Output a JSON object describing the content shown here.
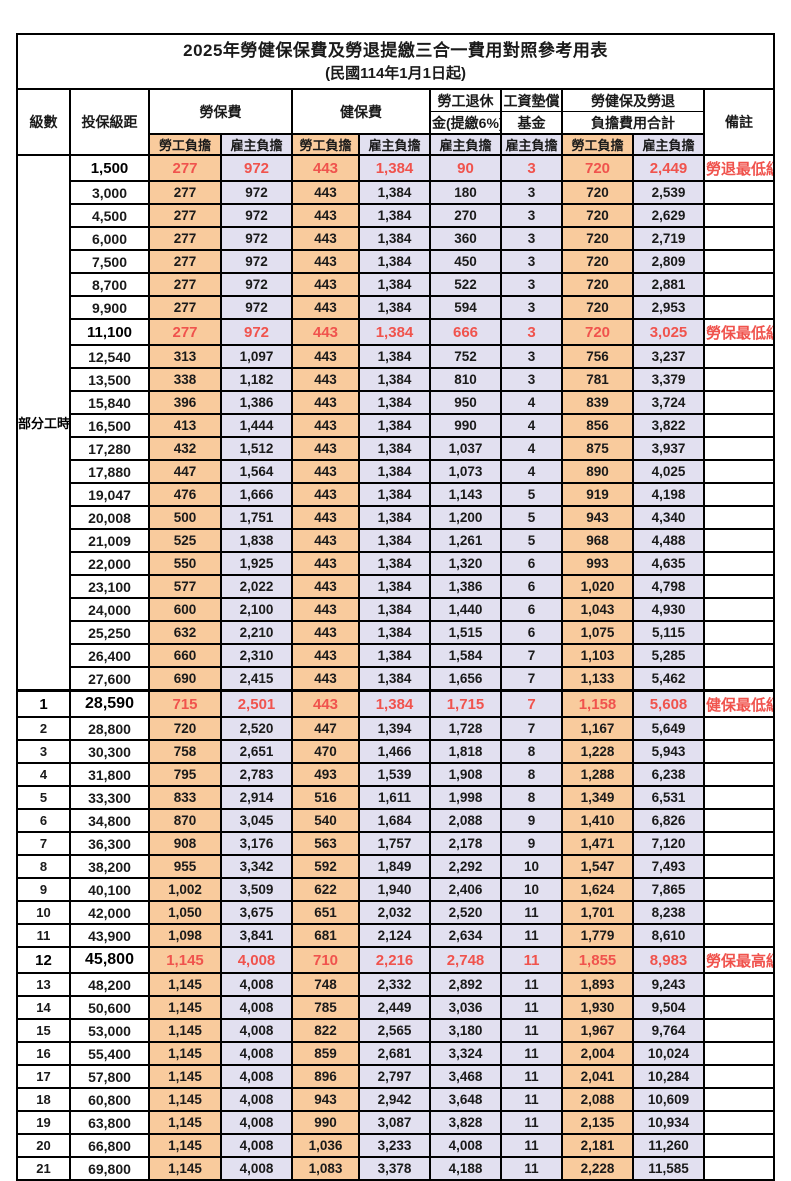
{
  "title": "2025年勞健保保費及勞退提繳三合一費用對照參考用表",
  "subtitle": "(民國114年1月1日起)",
  "header": {
    "level": "級數",
    "bracket": "投保級距",
    "labor_ins": "勞保費",
    "health_ins": "健保費",
    "pension_line1": "勞工退休",
    "pension_line2": "金(提繳6%)",
    "wage_fund_line1": "工資墊償",
    "wage_fund_line2": "基金",
    "total_line1": "勞健保及勞退",
    "total_line2": "負擔費用合計",
    "remark": "備註",
    "employee": "勞工負擔",
    "employer": "雇主負擔"
  },
  "part_time_label": "部分工時",
  "part_time_rowspan": 23,
  "colors": {
    "employee_bg": "#f9cb9d",
    "employer_bg": "#e2e0f0",
    "highlight_red": "#f0534d",
    "border": "#000000"
  },
  "rows": [
    {
      "lv": "",
      "amt": "1,500",
      "v": [
        "277",
        "972",
        "443",
        "1,384",
        "90",
        "3",
        "720",
        "2,449"
      ],
      "note": "勞退最低級距",
      "hl": true
    },
    {
      "lv": "",
      "amt": "3,000",
      "v": [
        "277",
        "972",
        "443",
        "1,384",
        "180",
        "3",
        "720",
        "2,539"
      ],
      "note": ""
    },
    {
      "lv": "",
      "amt": "4,500",
      "v": [
        "277",
        "972",
        "443",
        "1,384",
        "270",
        "3",
        "720",
        "2,629"
      ],
      "note": ""
    },
    {
      "lv": "",
      "amt": "6,000",
      "v": [
        "277",
        "972",
        "443",
        "1,384",
        "360",
        "3",
        "720",
        "2,719"
      ],
      "note": ""
    },
    {
      "lv": "",
      "amt": "7,500",
      "v": [
        "277",
        "972",
        "443",
        "1,384",
        "450",
        "3",
        "720",
        "2,809"
      ],
      "note": ""
    },
    {
      "lv": "",
      "amt": "8,700",
      "v": [
        "277",
        "972",
        "443",
        "1,384",
        "522",
        "3",
        "720",
        "2,881"
      ],
      "note": ""
    },
    {
      "lv": "",
      "amt": "9,900",
      "v": [
        "277",
        "972",
        "443",
        "1,384",
        "594",
        "3",
        "720",
        "2,953"
      ],
      "note": ""
    },
    {
      "lv": "",
      "amt": "11,100",
      "v": [
        "277",
        "972",
        "443",
        "1,384",
        "666",
        "3",
        "720",
        "3,025"
      ],
      "note": "勞保最低級距",
      "hl": true
    },
    {
      "lv": "",
      "amt": "12,540",
      "v": [
        "313",
        "1,097",
        "443",
        "1,384",
        "752",
        "3",
        "756",
        "3,237"
      ],
      "note": ""
    },
    {
      "lv": "",
      "amt": "13,500",
      "v": [
        "338",
        "1,182",
        "443",
        "1,384",
        "810",
        "3",
        "781",
        "3,379"
      ],
      "note": ""
    },
    {
      "lv": "",
      "amt": "15,840",
      "v": [
        "396",
        "1,386",
        "443",
        "1,384",
        "950",
        "4",
        "839",
        "3,724"
      ],
      "note": ""
    },
    {
      "lv": "",
      "amt": "16,500",
      "v": [
        "413",
        "1,444",
        "443",
        "1,384",
        "990",
        "4",
        "856",
        "3,822"
      ],
      "note": ""
    },
    {
      "lv": "",
      "amt": "17,280",
      "v": [
        "432",
        "1,512",
        "443",
        "1,384",
        "1,037",
        "4",
        "875",
        "3,937"
      ],
      "note": ""
    },
    {
      "lv": "",
      "amt": "17,880",
      "v": [
        "447",
        "1,564",
        "443",
        "1,384",
        "1,073",
        "4",
        "890",
        "4,025"
      ],
      "note": ""
    },
    {
      "lv": "",
      "amt": "19,047",
      "v": [
        "476",
        "1,666",
        "443",
        "1,384",
        "1,143",
        "5",
        "919",
        "4,198"
      ],
      "note": ""
    },
    {
      "lv": "",
      "amt": "20,008",
      "v": [
        "500",
        "1,751",
        "443",
        "1,384",
        "1,200",
        "5",
        "943",
        "4,340"
      ],
      "note": ""
    },
    {
      "lv": "",
      "amt": "21,009",
      "v": [
        "525",
        "1,838",
        "443",
        "1,384",
        "1,261",
        "5",
        "968",
        "4,488"
      ],
      "note": ""
    },
    {
      "lv": "",
      "amt": "22,000",
      "v": [
        "550",
        "1,925",
        "443",
        "1,384",
        "1,320",
        "6",
        "993",
        "4,635"
      ],
      "note": ""
    },
    {
      "lv": "",
      "amt": "23,100",
      "v": [
        "577",
        "2,022",
        "443",
        "1,384",
        "1,386",
        "6",
        "1,020",
        "4,798"
      ],
      "note": ""
    },
    {
      "lv": "",
      "amt": "24,000",
      "v": [
        "600",
        "2,100",
        "443",
        "1,384",
        "1,440",
        "6",
        "1,043",
        "4,930"
      ],
      "note": ""
    },
    {
      "lv": "",
      "amt": "25,250",
      "v": [
        "632",
        "2,210",
        "443",
        "1,384",
        "1,515",
        "6",
        "1,075",
        "5,115"
      ],
      "note": ""
    },
    {
      "lv": "",
      "amt": "26,400",
      "v": [
        "660",
        "2,310",
        "443",
        "1,384",
        "1,584",
        "7",
        "1,103",
        "5,285"
      ],
      "note": ""
    },
    {
      "lv": "",
      "amt": "27,600",
      "v": [
        "690",
        "2,415",
        "443",
        "1,384",
        "1,656",
        "7",
        "1,133",
        "5,462"
      ],
      "note": ""
    },
    {
      "lv": "1",
      "amt": "28,590",
      "v": [
        "715",
        "2,501",
        "443",
        "1,384",
        "1,715",
        "7",
        "1,158",
        "5,608"
      ],
      "note": "健保最低級距",
      "hl": true,
      "big": true,
      "sep": true
    },
    {
      "lv": "2",
      "amt": "28,800",
      "v": [
        "720",
        "2,520",
        "447",
        "1,394",
        "1,728",
        "7",
        "1,167",
        "5,649"
      ],
      "note": ""
    },
    {
      "lv": "3",
      "amt": "30,300",
      "v": [
        "758",
        "2,651",
        "470",
        "1,466",
        "1,818",
        "8",
        "1,228",
        "5,943"
      ],
      "note": ""
    },
    {
      "lv": "4",
      "amt": "31,800",
      "v": [
        "795",
        "2,783",
        "493",
        "1,539",
        "1,908",
        "8",
        "1,288",
        "6,238"
      ],
      "note": ""
    },
    {
      "lv": "5",
      "amt": "33,300",
      "v": [
        "833",
        "2,914",
        "516",
        "1,611",
        "1,998",
        "8",
        "1,349",
        "6,531"
      ],
      "note": ""
    },
    {
      "lv": "6",
      "amt": "34,800",
      "v": [
        "870",
        "3,045",
        "540",
        "1,684",
        "2,088",
        "9",
        "1,410",
        "6,826"
      ],
      "note": ""
    },
    {
      "lv": "7",
      "amt": "36,300",
      "v": [
        "908",
        "3,176",
        "563",
        "1,757",
        "2,178",
        "9",
        "1,471",
        "7,120"
      ],
      "note": ""
    },
    {
      "lv": "8",
      "amt": "38,200",
      "v": [
        "955",
        "3,342",
        "592",
        "1,849",
        "2,292",
        "10",
        "1,547",
        "7,493"
      ],
      "note": ""
    },
    {
      "lv": "9",
      "amt": "40,100",
      "v": [
        "1,002",
        "3,509",
        "622",
        "1,940",
        "2,406",
        "10",
        "1,624",
        "7,865"
      ],
      "note": ""
    },
    {
      "lv": "10",
      "amt": "42,000",
      "v": [
        "1,050",
        "3,675",
        "651",
        "2,032",
        "2,520",
        "11",
        "1,701",
        "8,238"
      ],
      "note": ""
    },
    {
      "lv": "11",
      "amt": "43,900",
      "v": [
        "1,098",
        "3,841",
        "681",
        "2,124",
        "2,634",
        "11",
        "1,779",
        "8,610"
      ],
      "note": ""
    },
    {
      "lv": "12",
      "amt": "45,800",
      "v": [
        "1,145",
        "4,008",
        "710",
        "2,216",
        "2,748",
        "11",
        "1,855",
        "8,983"
      ],
      "note": "勞保最高級距",
      "hl": true,
      "big": true
    },
    {
      "lv": "13",
      "amt": "48,200",
      "v": [
        "1,145",
        "4,008",
        "748",
        "2,332",
        "2,892",
        "11",
        "1,893",
        "9,243"
      ],
      "note": ""
    },
    {
      "lv": "14",
      "amt": "50,600",
      "v": [
        "1,145",
        "4,008",
        "785",
        "2,449",
        "3,036",
        "11",
        "1,930",
        "9,504"
      ],
      "note": ""
    },
    {
      "lv": "15",
      "amt": "53,000",
      "v": [
        "1,145",
        "4,008",
        "822",
        "2,565",
        "3,180",
        "11",
        "1,967",
        "9,764"
      ],
      "note": ""
    },
    {
      "lv": "16",
      "amt": "55,400",
      "v": [
        "1,145",
        "4,008",
        "859",
        "2,681",
        "3,324",
        "11",
        "2,004",
        "10,024"
      ],
      "note": ""
    },
    {
      "lv": "17",
      "amt": "57,800",
      "v": [
        "1,145",
        "4,008",
        "896",
        "2,797",
        "3,468",
        "11",
        "2,041",
        "10,284"
      ],
      "note": ""
    },
    {
      "lv": "18",
      "amt": "60,800",
      "v": [
        "1,145",
        "4,008",
        "943",
        "2,942",
        "3,648",
        "11",
        "2,088",
        "10,609"
      ],
      "note": ""
    },
    {
      "lv": "19",
      "amt": "63,800",
      "v": [
        "1,145",
        "4,008",
        "990",
        "3,087",
        "3,828",
        "11",
        "2,135",
        "10,934"
      ],
      "note": ""
    },
    {
      "lv": "20",
      "amt": "66,800",
      "v": [
        "1,145",
        "4,008",
        "1,036",
        "3,233",
        "4,008",
        "11",
        "2,181",
        "11,260"
      ],
      "note": ""
    },
    {
      "lv": "21",
      "amt": "69,800",
      "v": [
        "1,145",
        "4,008",
        "1,083",
        "3,378",
        "4,188",
        "11",
        "2,228",
        "11,585"
      ],
      "note": ""
    }
  ]
}
